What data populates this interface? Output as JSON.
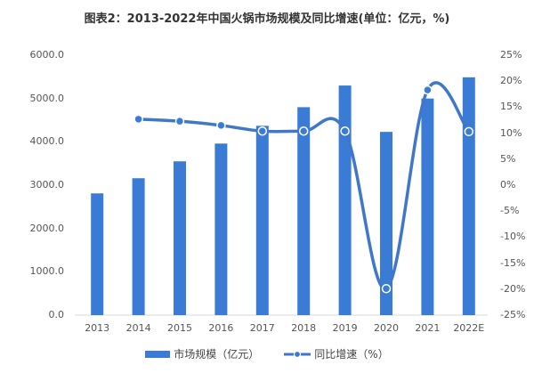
{
  "title": "图表2：2013-2022年中国火锅市场规模及同比增速(单位：亿元，%)",
  "colors": {
    "bar": "#3a7bd5",
    "line": "#3f77c9",
    "marker_fill": "#3a7bd5",
    "marker_stroke": "#ffffff"
  },
  "left_axis": {
    "ticks": [
      "6000.0",
      "5000.0",
      "4000.0",
      "3000.0",
      "2000.0",
      "1000.0",
      "0.0"
    ]
  },
  "right_axis": {
    "ticks": [
      "25%",
      "20%",
      "15%",
      "10%",
      "5%",
      "0%",
      "-5%",
      "-10%",
      "-15%",
      "-20%",
      "-25%"
    ]
  },
  "legend": {
    "bar_label": "市场规模（亿元）",
    "line_label": "同比增速（%）"
  },
  "chart_data": {
    "type": "bar",
    "title": "图表2：2013-2022年中国火锅市场规模及同比增速(单位：亿元，%)",
    "xlabel": "",
    "ylabel": "",
    "categories": [
      "2013",
      "2014",
      "2015",
      "2016",
      "2017",
      "2018",
      "2019",
      "2020",
      "2021",
      "2022E"
    ],
    "series": [
      {
        "name": "市场规模（亿元）",
        "type": "bar",
        "axis": "left",
        "values": [
          2810,
          3160,
          3550,
          3960,
          4370,
          4800,
          5300,
          4230,
          5000,
          5490
        ]
      },
      {
        "name": "同比增速（%）",
        "type": "line",
        "axis": "right",
        "values": [
          null,
          12.7,
          12.3,
          11.5,
          10.4,
          10.4,
          10.4,
          -19.9,
          18.3,
          10.3
        ]
      }
    ],
    "ylim": [
      0,
      6000
    ],
    "y2lim": [
      -25,
      25
    ],
    "legend_position": "bottom",
    "grid": false
  }
}
